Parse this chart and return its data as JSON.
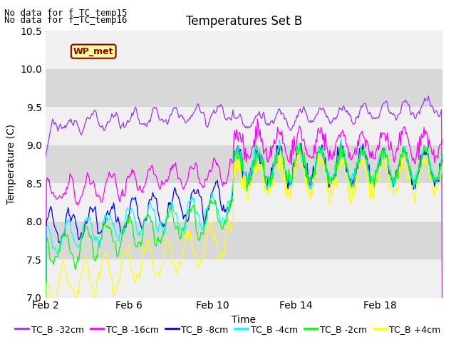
{
  "title": "Temperatures Set B",
  "xlabel": "Time",
  "ylabel": "Temperature (C)",
  "ylim": [
    7.0,
    10.5
  ],
  "note_lines": [
    "No data for f_TC_temp15",
    "No data for f_TC_temp16"
  ],
  "wp_met_label": "WP_met",
  "x_tick_labels": [
    "Feb 2",
    "Feb 6",
    "Feb 10",
    "Feb 14",
    "Feb 18"
  ],
  "x_tick_positions": [
    1,
    5,
    9,
    13,
    17
  ],
  "y_ticks": [
    7.0,
    7.5,
    8.0,
    8.5,
    9.0,
    9.5,
    10.0,
    10.5
  ],
  "series": [
    {
      "label": "TC_B -32cm",
      "color": "#9933ff"
    },
    {
      "label": "TC_B -16cm",
      "color": "#ff00ff"
    },
    {
      "label": "TC_B -8cm",
      "color": "#0000ff"
    },
    {
      "label": "TC_B -4cm",
      "color": "#00ffff"
    },
    {
      "label": "TC_B -2cm",
      "color": "#00ff00"
    },
    {
      "label": "TC_B +4cm",
      "color": "#ffff00"
    }
  ],
  "bg_light": "#f0f0f0",
  "bg_dark": "#d8d8d8",
  "title_fontsize": 12,
  "label_fontsize": 10,
  "tick_fontsize": 10,
  "legend_fontsize": 9,
  "note_fontsize": 9
}
